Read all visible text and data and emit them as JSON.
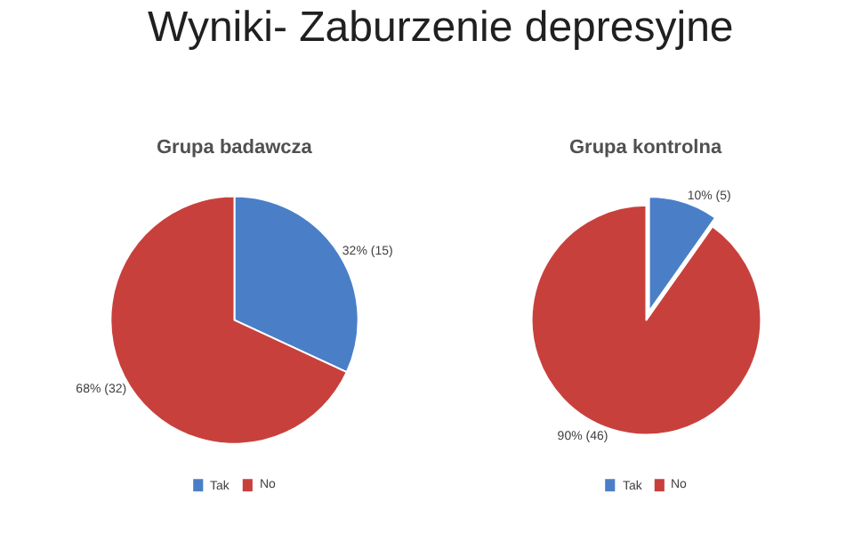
{
  "chart_data": [
    {
      "type": "pie",
      "title": "Grupa badawcza",
      "annotations": [
        "Wyniki- Zaburzenie depresyjne"
      ],
      "categories": [
        "Tak",
        "No"
      ],
      "values": [
        15,
        32
      ],
      "colors": [
        "#4a7fc8",
        "#c8403c"
      ],
      "value_labels": [
        "32% (15)",
        "68% (32)"
      ],
      "legend": "bottom"
    },
    {
      "type": "pie",
      "title": "Grupa kontrolna",
      "categories": [
        "Tak",
        "No"
      ],
      "values": [
        5,
        46
      ],
      "colors": [
        "#4a7fc8",
        "#c8403c"
      ],
      "value_labels": [
        "10% (5)",
        "90% (46)"
      ],
      "legend": "bottom"
    }
  ]
}
